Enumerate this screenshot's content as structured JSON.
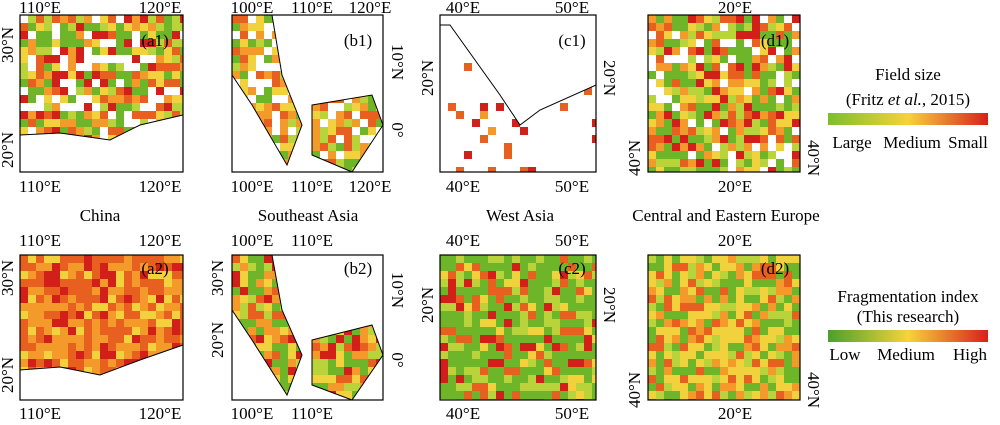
{
  "panels": [
    {
      "label": "(a1)",
      "ticks": [
        "110°E",
        "120°E",
        "30°N",
        "20°N",
        "110°E",
        "120°E"
      ]
    },
    {
      "label": "(b1)",
      "ticks": [
        "100°E",
        "110°E",
        "120°E",
        "10°N",
        "0°",
        "100°E",
        "110°E",
        "120°E"
      ]
    },
    {
      "label": "(c1)",
      "ticks": [
        "40°E",
        "50°E",
        "20°N",
        "20°N",
        "40°E",
        "50°E"
      ]
    },
    {
      "label": "(d1)",
      "ticks": [
        "20°E",
        "40°N",
        "40°N",
        "20°E"
      ]
    },
    {
      "label": "(a2)",
      "ticks": [
        "110°E",
        "120°E",
        "30°N",
        "20°N",
        "110°E",
        "120°E"
      ]
    },
    {
      "label": "(b2)",
      "ticks": [
        "100°E",
        "110°E",
        "30°N",
        "20°N",
        "10°N",
        "0°",
        "100°E",
        "110°E"
      ]
    },
    {
      "label": "(c2)",
      "ticks": [
        "40°E",
        "50°E",
        "20°N",
        "20°N",
        "40°E",
        "50°E"
      ]
    },
    {
      "label": "(d2)",
      "ticks": [
        "20°E",
        "40°N",
        "40°N",
        "20°E"
      ]
    }
  ],
  "region_titles": [
    "China",
    "Southeast Asia",
    "West Asia",
    "Central and Eastern Europe"
  ],
  "legends": [
    {
      "title": "Field size",
      "subtitle": [
        "(Fritz ",
        "et al.",
        ", 2015)"
      ],
      "labels": [
        "Large",
        "Medium",
        "Small"
      ]
    },
    {
      "title": "Fragmentation index",
      "subtitle": [
        "(This research)"
      ],
      "labels": [
        "Low",
        "Medium",
        "High"
      ]
    }
  ]
}
